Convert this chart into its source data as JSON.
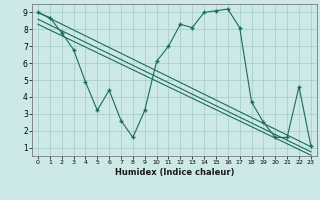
{
  "title": "",
  "xlabel": "Humidex (Indice chaleur)",
  "bg_color": "#cce9e7",
  "grid_color": "#aacfcd",
  "line_color": "#1a6b5e",
  "xlim": [
    -0.5,
    23.5
  ],
  "ylim": [
    0.5,
    9.5
  ],
  "xticks": [
    0,
    1,
    2,
    3,
    4,
    5,
    6,
    7,
    8,
    9,
    10,
    11,
    12,
    13,
    14,
    15,
    16,
    17,
    18,
    19,
    20,
    21,
    22,
    23
  ],
  "yticks": [
    1,
    2,
    3,
    4,
    5,
    6,
    7,
    8,
    9
  ],
  "main_x": [
    0,
    1,
    2,
    3,
    4,
    5,
    6,
    7,
    8,
    9,
    10,
    11,
    12,
    13,
    14,
    15,
    16,
    17,
    18,
    19,
    20,
    21,
    22,
    23
  ],
  "main_y": [
    9.0,
    8.7,
    7.8,
    6.8,
    4.9,
    3.2,
    4.4,
    2.6,
    1.6,
    3.2,
    6.1,
    7.0,
    8.3,
    8.1,
    9.0,
    9.1,
    9.2,
    8.1,
    3.7,
    2.5,
    1.6,
    1.6,
    4.6,
    1.1
  ],
  "trend1_x": [
    0,
    23
  ],
  "trend1_y": [
    9.0,
    1.05
  ],
  "trend2_x": [
    0,
    23
  ],
  "trend2_y": [
    8.6,
    0.75
  ],
  "trend3_x": [
    0,
    23
  ],
  "trend3_y": [
    8.3,
    0.55
  ]
}
